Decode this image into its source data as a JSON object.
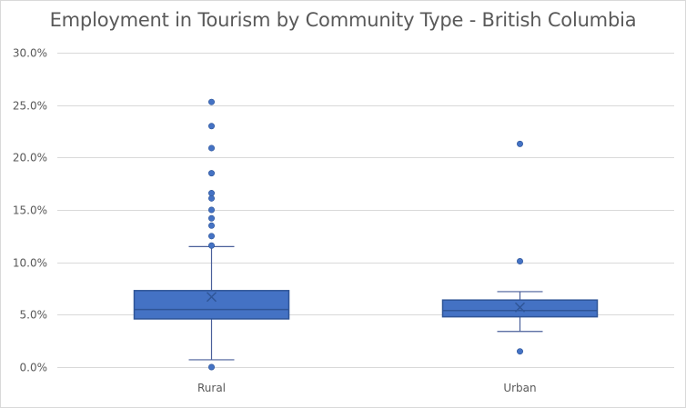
{
  "chart_data": {
    "type": "boxplot",
    "title": "Employment in Tourism by Community Type - British Columbia",
    "xlabel": "",
    "ylabel": "",
    "ylim": [
      0,
      30
    ],
    "y_ticks": [
      "0.0%",
      "5.0%",
      "10.0%",
      "15.0%",
      "20.0%",
      "25.0%",
      "30.0%"
    ],
    "y_tick_values": [
      0,
      5,
      10,
      15,
      20,
      25,
      30
    ],
    "grid": true,
    "legend": "none",
    "categories": [
      "Rural",
      "Urban"
    ],
    "series": [
      {
        "name": "Rural",
        "whisker_low": 0.7,
        "q1": 4.6,
        "median": 5.5,
        "q3": 7.3,
        "whisker_high": 11.5,
        "mean": 6.7,
        "outliers": [
          0.0,
          11.6,
          12.5,
          13.5,
          14.2,
          15.0,
          16.1,
          16.6,
          18.5,
          20.9,
          23.0,
          25.3
        ]
      },
      {
        "name": "Urban",
        "whisker_low": 3.4,
        "q1": 4.8,
        "median": 5.4,
        "q3": 6.4,
        "whisker_high": 7.2,
        "mean": 5.7,
        "outliers": [
          1.5,
          10.1,
          21.3
        ]
      }
    ],
    "colors": {
      "box_fill": "#4472C4",
      "box_edge": "#2F5597",
      "whisker": "#4A5F9A",
      "outlier": "#4472C4",
      "gridline": "#d9d9d9",
      "text": "#595959"
    }
  }
}
